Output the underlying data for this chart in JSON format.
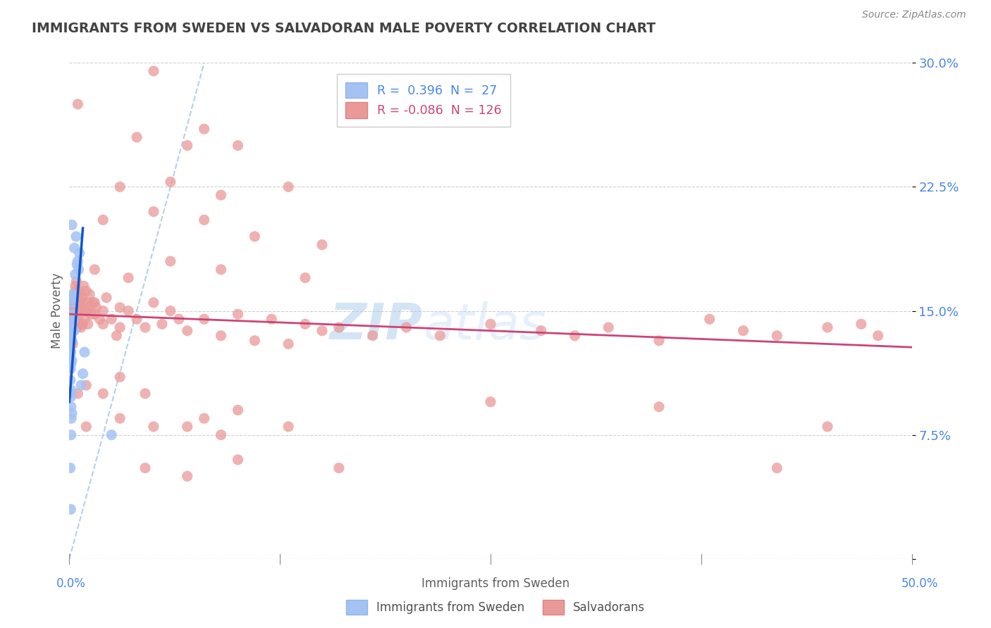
{
  "title": "IMMIGRANTS FROM SWEDEN VS SALVADORAN MALE POVERTY CORRELATION CHART",
  "source": "Source: ZipAtlas.com",
  "ylabel": "Male Poverty",
  "xlim": [
    0.0,
    50.0
  ],
  "ylim": [
    0.0,
    30.0
  ],
  "yticks": [
    0.0,
    7.5,
    15.0,
    22.5,
    30.0
  ],
  "ytick_labels": [
    "",
    "7.5%",
    "15.0%",
    "22.5%",
    "30.0%"
  ],
  "blue_color": "#a4c2f4",
  "pink_color": "#ea9999",
  "trendline_blue": "#1155cc",
  "trendline_pink": "#cc4477",
  "diag_color": "#9fc5e8",
  "watermark_zip": "ZIP",
  "watermark_atlas": "atlas",
  "title_color": "#434343",
  "axis_label_color": "#4a86e8",
  "blue_scatter": [
    [
      0.0,
      13.5
    ],
    [
      0.05,
      13.0
    ],
    [
      0.08,
      14.2
    ],
    [
      0.1,
      12.5
    ],
    [
      0.1,
      11.8
    ],
    [
      0.12,
      14.8
    ],
    [
      0.15,
      13.2
    ],
    [
      0.15,
      12.0
    ],
    [
      0.18,
      15.5
    ],
    [
      0.2,
      16.0
    ],
    [
      0.22,
      14.5
    ],
    [
      0.25,
      15.8
    ],
    [
      0.28,
      13.8
    ],
    [
      0.3,
      18.8
    ],
    [
      0.35,
      17.2
    ],
    [
      0.4,
      19.5
    ],
    [
      0.45,
      17.8
    ],
    [
      0.5,
      18.0
    ],
    [
      0.55,
      17.5
    ],
    [
      0.6,
      18.5
    ],
    [
      0.7,
      10.5
    ],
    [
      0.8,
      11.2
    ],
    [
      0.9,
      12.5
    ],
    [
      0.05,
      10.0
    ],
    [
      0.1,
      9.2
    ],
    [
      0.12,
      8.5
    ],
    [
      0.15,
      8.8
    ],
    [
      0.05,
      5.5
    ],
    [
      0.08,
      3.0
    ],
    [
      0.1,
      7.5
    ],
    [
      0.0,
      11.5
    ],
    [
      0.0,
      12.8
    ],
    [
      0.02,
      13.5
    ],
    [
      0.03,
      14.0
    ],
    [
      0.04,
      12.2
    ],
    [
      0.06,
      10.8
    ],
    [
      0.07,
      11.5
    ],
    [
      0.09,
      9.8
    ],
    [
      0.11,
      10.2
    ],
    [
      2.5,
      7.5
    ],
    [
      0.15,
      20.2
    ]
  ],
  "pink_scatter": [
    [
      0.0,
      14.0
    ],
    [
      0.02,
      14.5
    ],
    [
      0.04,
      13.8
    ],
    [
      0.05,
      15.0
    ],
    [
      0.06,
      14.2
    ],
    [
      0.08,
      15.5
    ],
    [
      0.1,
      14.8
    ],
    [
      0.1,
      13.5
    ],
    [
      0.12,
      15.2
    ],
    [
      0.15,
      14.5
    ],
    [
      0.15,
      13.2
    ],
    [
      0.18,
      15.8
    ],
    [
      0.2,
      14.2
    ],
    [
      0.2,
      13.0
    ],
    [
      0.22,
      15.5
    ],
    [
      0.25,
      14.8
    ],
    [
      0.28,
      15.2
    ],
    [
      0.3,
      16.0
    ],
    [
      0.3,
      14.5
    ],
    [
      0.32,
      15.8
    ],
    [
      0.35,
      16.5
    ],
    [
      0.35,
      15.0
    ],
    [
      0.38,
      16.2
    ],
    [
      0.4,
      15.5
    ],
    [
      0.4,
      14.2
    ],
    [
      0.42,
      16.8
    ],
    [
      0.45,
      15.2
    ],
    [
      0.45,
      14.0
    ],
    [
      0.5,
      15.8
    ],
    [
      0.5,
      14.5
    ],
    [
      0.55,
      16.2
    ],
    [
      0.55,
      15.0
    ],
    [
      0.6,
      15.5
    ],
    [
      0.6,
      14.2
    ],
    [
      0.65,
      16.0
    ],
    [
      0.7,
      15.2
    ],
    [
      0.7,
      14.0
    ],
    [
      0.75,
      15.8
    ],
    [
      0.8,
      15.5
    ],
    [
      0.8,
      14.2
    ],
    [
      0.85,
      16.5
    ],
    [
      0.9,
      15.0
    ],
    [
      0.9,
      14.5
    ],
    [
      1.0,
      16.2
    ],
    [
      1.0,
      15.0
    ],
    [
      1.1,
      15.5
    ],
    [
      1.1,
      14.2
    ],
    [
      1.2,
      16.0
    ],
    [
      1.2,
      15.2
    ],
    [
      1.3,
      14.8
    ],
    [
      1.4,
      15.5
    ],
    [
      1.5,
      14.8
    ],
    [
      1.5,
      15.5
    ],
    [
      1.6,
      15.2
    ],
    [
      1.8,
      14.5
    ],
    [
      2.0,
      15.0
    ],
    [
      2.0,
      14.2
    ],
    [
      2.2,
      15.8
    ],
    [
      2.5,
      14.5
    ],
    [
      2.8,
      13.5
    ],
    [
      3.0,
      15.2
    ],
    [
      3.0,
      14.0
    ],
    [
      3.5,
      15.0
    ],
    [
      4.0,
      14.5
    ],
    [
      4.5,
      14.0
    ],
    [
      5.0,
      15.5
    ],
    [
      5.5,
      14.2
    ],
    [
      6.0,
      15.0
    ],
    [
      6.5,
      14.5
    ],
    [
      7.0,
      13.8
    ],
    [
      8.0,
      14.5
    ],
    [
      9.0,
      13.5
    ],
    [
      10.0,
      14.8
    ],
    [
      11.0,
      13.2
    ],
    [
      12.0,
      14.5
    ],
    [
      13.0,
      13.0
    ],
    [
      14.0,
      14.2
    ],
    [
      15.0,
      13.8
    ],
    [
      16.0,
      14.0
    ],
    [
      18.0,
      13.5
    ],
    [
      20.0,
      14.0
    ],
    [
      22.0,
      13.5
    ],
    [
      25.0,
      14.2
    ],
    [
      28.0,
      13.8
    ],
    [
      30.0,
      13.5
    ],
    [
      32.0,
      14.0
    ],
    [
      35.0,
      13.2
    ],
    [
      38.0,
      14.5
    ],
    [
      40.0,
      13.8
    ],
    [
      42.0,
      13.5
    ],
    [
      45.0,
      14.0
    ],
    [
      47.0,
      14.2
    ],
    [
      48.0,
      13.5
    ],
    [
      0.5,
      27.5
    ],
    [
      5.0,
      29.5
    ],
    [
      8.0,
      26.0
    ],
    [
      7.0,
      25.0
    ],
    [
      4.0,
      25.5
    ],
    [
      10.0,
      25.0
    ],
    [
      3.0,
      22.5
    ],
    [
      6.0,
      22.8
    ],
    [
      9.0,
      22.0
    ],
    [
      13.0,
      22.5
    ],
    [
      2.0,
      20.5
    ],
    [
      5.0,
      21.0
    ],
    [
      8.0,
      20.5
    ],
    [
      11.0,
      19.5
    ],
    [
      15.0,
      19.0
    ],
    [
      1.5,
      17.5
    ],
    [
      3.5,
      17.0
    ],
    [
      6.0,
      18.0
    ],
    [
      9.0,
      17.5
    ],
    [
      14.0,
      17.0
    ],
    [
      0.5,
      10.0
    ],
    [
      1.0,
      10.5
    ],
    [
      2.0,
      10.0
    ],
    [
      3.0,
      11.0
    ],
    [
      4.5,
      10.0
    ],
    [
      1.0,
      8.0
    ],
    [
      3.0,
      8.5
    ],
    [
      5.0,
      8.0
    ],
    [
      8.0,
      8.5
    ],
    [
      10.0,
      9.0
    ],
    [
      13.0,
      8.0
    ],
    [
      7.0,
      8.0
    ],
    [
      9.0,
      7.5
    ],
    [
      4.5,
      5.5
    ],
    [
      7.0,
      5.0
    ],
    [
      10.0,
      6.0
    ],
    [
      16.0,
      5.5
    ],
    [
      42.0,
      5.5
    ],
    [
      25.0,
      9.5
    ],
    [
      35.0,
      9.2
    ],
    [
      45.0,
      8.0
    ]
  ],
  "blue_trendline_x": [
    0.0,
    0.8
  ],
  "blue_trendline_y": [
    9.5,
    20.0
  ],
  "pink_trendline_x": [
    0.0,
    50.0
  ],
  "pink_trendline_y": [
    14.8,
    12.8
  ],
  "diag_line_x": [
    0.0,
    8.0
  ],
  "diag_line_y": [
    0.0,
    30.0
  ]
}
